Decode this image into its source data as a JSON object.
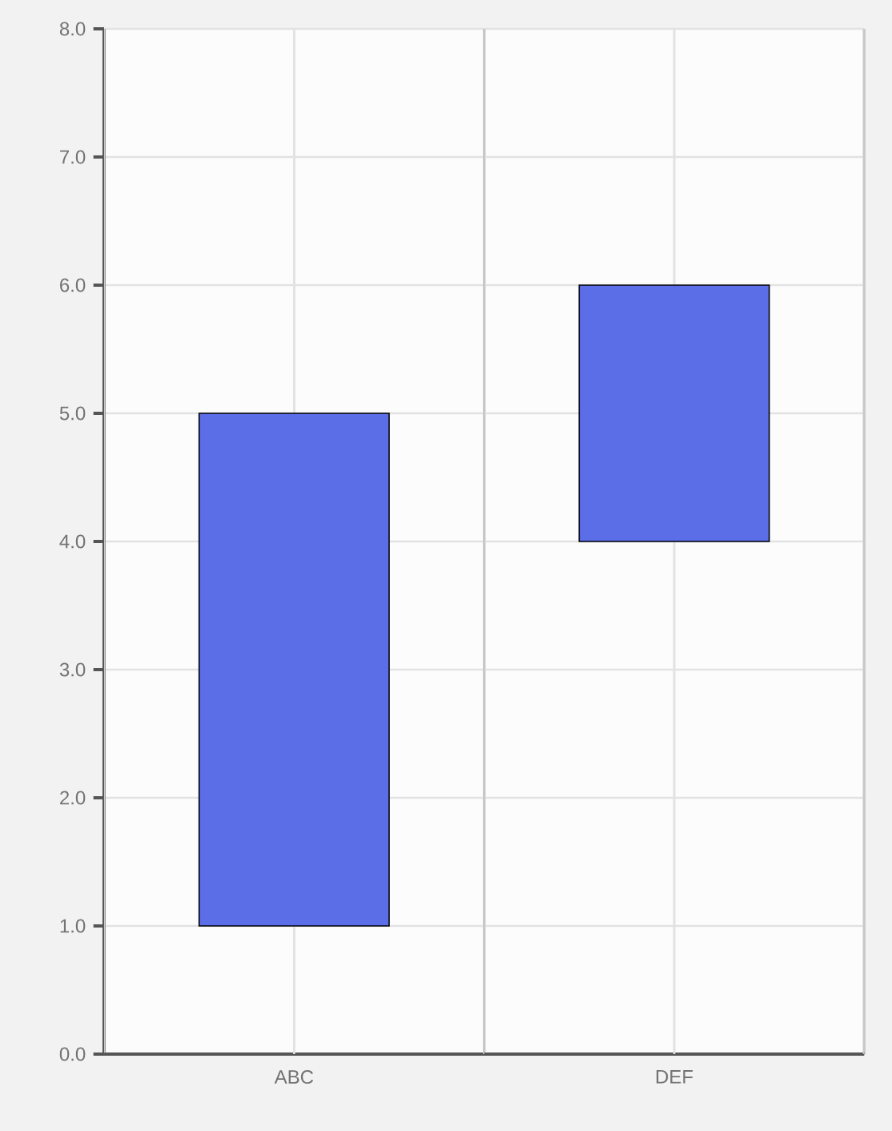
{
  "chart_data": {
    "type": "bar",
    "categories": [
      "ABC",
      "DEF"
    ],
    "values": [
      4,
      2
    ],
    "base": [
      1,
      4
    ],
    "color": "#5b6ee8",
    "ylim": [
      0,
      8
    ],
    "yticks": [
      {
        "value": 0,
        "label": "0.0"
      },
      {
        "value": 1,
        "label": "1.0"
      },
      {
        "value": 2,
        "label": "2.0"
      },
      {
        "value": 3,
        "label": "3.0"
      },
      {
        "value": 4,
        "label": "4.0"
      },
      {
        "value": 5,
        "label": "5.0"
      },
      {
        "value": 6,
        "label": "6.0"
      },
      {
        "value": 7,
        "label": "7.0"
      },
      {
        "value": 8,
        "label": "8.0"
      }
    ],
    "grid": true
  }
}
